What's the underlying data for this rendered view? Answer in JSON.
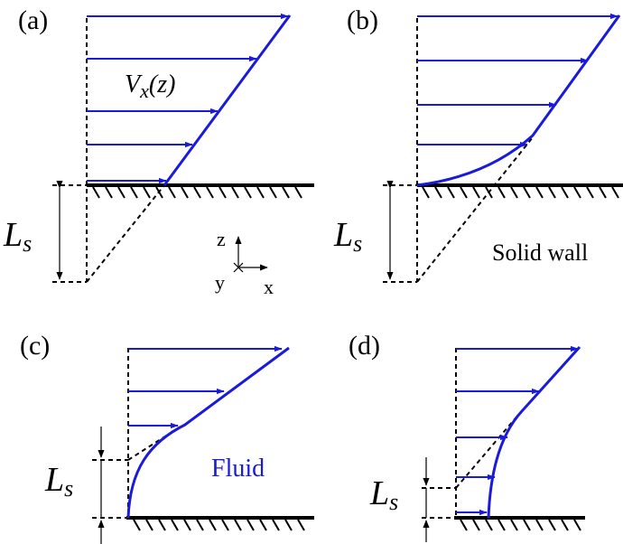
{
  "labels": {
    "panel_a": "(a)",
    "panel_b": "(b)",
    "panel_c": "(c)",
    "panel_d": "(d)",
    "slip_length": "L",
    "slip_length_sub": "s",
    "velocity_profile": "V",
    "velocity_sub": "x",
    "velocity_arg": "(z)",
    "axis_z": "z",
    "axis_y": "y",
    "axis_x": "x",
    "solid_wall": "Solid wall",
    "fluid": "Fluid"
  },
  "colors": {
    "profile": "#1a1adb",
    "lines": "#000000"
  }
}
